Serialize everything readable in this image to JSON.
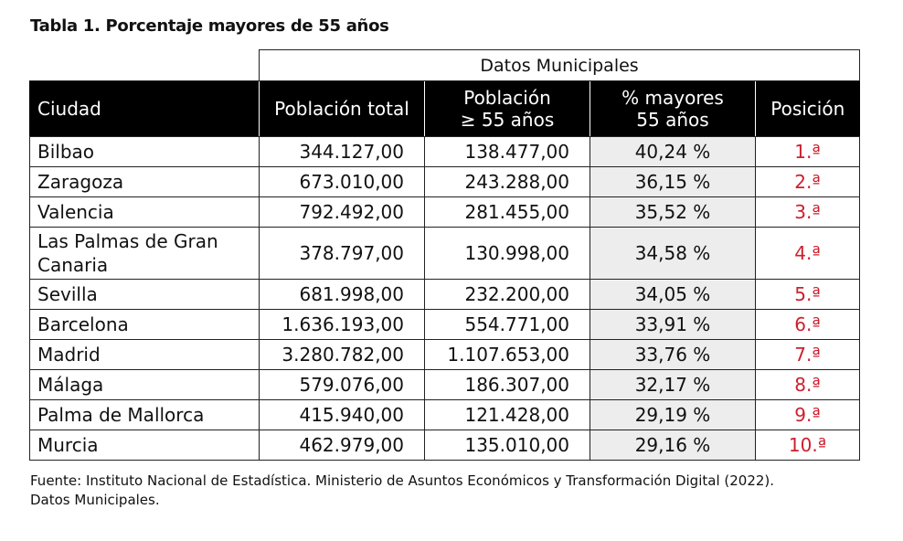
{
  "title": "Tabla 1. Porcentaje mayores de 55 años",
  "table": {
    "group_header": "Datos Municipales",
    "headers": {
      "city": "Ciudad",
      "total": "Población total",
      "over55_line1": "Población",
      "over55_line2": "≥ 55 años",
      "pct_line1": "% mayores",
      "pct_line2": "55 años",
      "rank": "Posición"
    },
    "rows": [
      {
        "city": "Bilbao",
        "total": "344.127,00",
        "over55": "138.477,00",
        "pct": "40,24 %",
        "rank": "1.ª"
      },
      {
        "city": "Zaragoza",
        "total": "673.010,00",
        "over55": "243.288,00",
        "pct": "36,15 %",
        "rank": "2.ª"
      },
      {
        "city": "Valencia",
        "total": "792.492,00",
        "over55": "281.455,00",
        "pct": "35,52 %",
        "rank": "3.ª"
      },
      {
        "city_line1": "Las Palmas de Gran",
        "city_line2": "Canaria",
        "total": "378.797,00",
        "over55": "130.998,00",
        "pct": "34,58 %",
        "rank": "4.ª"
      },
      {
        "city": "Sevilla",
        "total": "681.998,00",
        "over55": "232.200,00",
        "pct": "34,05 %",
        "rank": "5.ª"
      },
      {
        "city": "Barcelona",
        "total": "1.636.193,00",
        "over55": "554.771,00",
        "pct": "33,91 %",
        "rank": "6.ª"
      },
      {
        "city": "Madrid",
        "total": "3.280.782,00",
        "over55": "1.107.653,00",
        "pct": "33,76 %",
        "rank": "7.ª"
      },
      {
        "city": "Málaga",
        "total": "579.076,00",
        "over55": "186.307,00",
        "pct": "32,17 %",
        "rank": "8.ª"
      },
      {
        "city": "Palma de Mallorca",
        "total": "415.940,00",
        "over55": "121.428,00",
        "pct": "29,19 %",
        "rank": "9.ª"
      },
      {
        "city": "Murcia",
        "total": "462.979,00",
        "over55": "135.010,00",
        "pct": "29,16 %",
        "rank": "10.ª"
      }
    ]
  },
  "source_line1": "Fuente: Instituto Nacional de Estadística. Ministerio de Asuntos Económicos y Transformación Digital (2022).",
  "source_line2": "Datos Municipales.",
  "colors": {
    "header_bg": "#000000",
    "highlight_bg": "#ededed",
    "rank_text": "#cc1f2e"
  }
}
